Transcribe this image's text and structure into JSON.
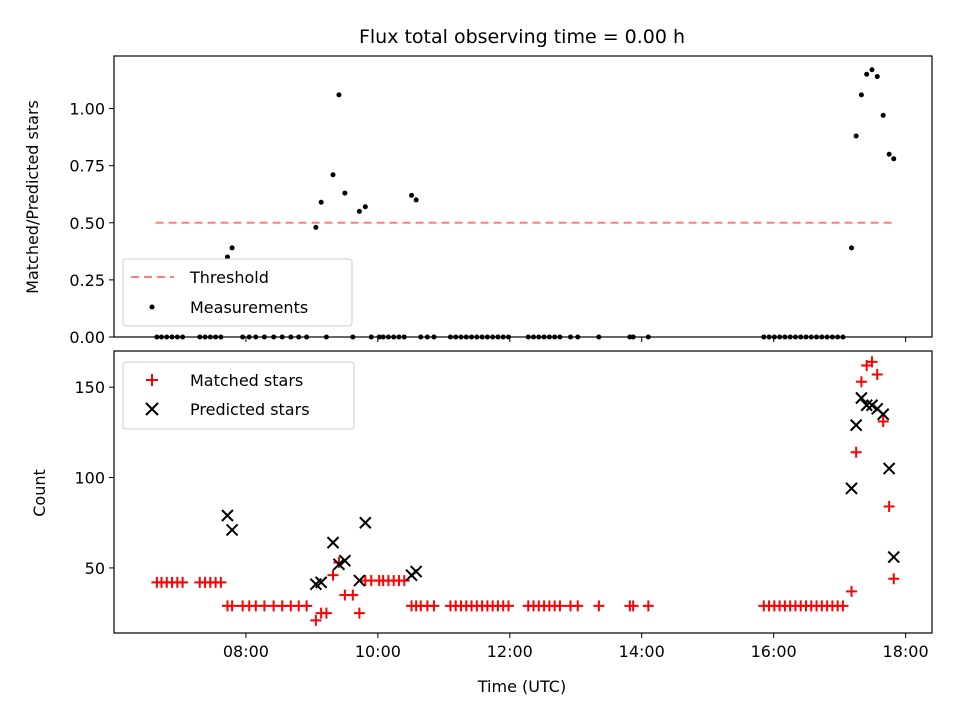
{
  "chart_data": [
    {
      "type": "scatter",
      "title": "Flux total observing time = 0.00 h",
      "xlabel": "",
      "ylabel": "Matched/Predicted stars",
      "ylim": [
        0,
        1.23
      ],
      "yticks": [
        0.0,
        0.25,
        0.5,
        0.75,
        1.0
      ],
      "ytick_labels": [
        "0.00",
        "0.25",
        "0.50",
        "0.75",
        "1.00"
      ],
      "x_hours_range": [
        6.0,
        18.4
      ],
      "legend_position": "lower-left",
      "threshold": {
        "name": "Threshold",
        "value": 0.5,
        "x_start": 6.63,
        "x_end": 17.85,
        "color": "#ff7f7f"
      },
      "measurements": {
        "name": "Measurements",
        "color": "#000000",
        "points": [
          [
            7.72,
            0.35
          ],
          [
            7.79,
            0.39
          ],
          [
            9.06,
            0.48
          ],
          [
            9.14,
            0.59
          ],
          [
            9.32,
            0.71
          ],
          [
            9.41,
            1.06
          ],
          [
            9.5,
            0.63
          ],
          [
            9.72,
            0.55
          ],
          [
            9.81,
            0.57
          ],
          [
            10.51,
            0.62
          ],
          [
            10.58,
            0.6
          ],
          [
            17.18,
            0.39
          ],
          [
            17.25,
            0.88
          ],
          [
            17.33,
            1.06
          ],
          [
            17.41,
            1.15
          ],
          [
            17.49,
            1.17
          ],
          [
            17.57,
            1.14
          ],
          [
            17.66,
            0.97
          ],
          [
            17.75,
            0.8
          ],
          [
            17.82,
            0.78
          ],
          [
            6.65,
            0.0
          ],
          [
            6.72,
            0.0
          ],
          [
            6.8,
            0.0
          ],
          [
            6.88,
            0.0
          ],
          [
            6.96,
            0.0
          ],
          [
            7.04,
            0.0
          ],
          [
            7.3,
            0.0
          ],
          [
            7.38,
            0.0
          ],
          [
            7.46,
            0.0
          ],
          [
            7.54,
            0.0
          ],
          [
            7.62,
            0.0
          ],
          [
            7.95,
            0.0
          ],
          [
            8.05,
            0.0
          ],
          [
            8.15,
            0.0
          ],
          [
            8.28,
            0.0
          ],
          [
            8.42,
            0.0
          ],
          [
            8.55,
            0.0
          ],
          [
            8.68,
            0.0
          ],
          [
            8.8,
            0.0
          ],
          [
            8.92,
            0.0
          ],
          [
            9.22,
            0.0
          ],
          [
            9.62,
            0.0
          ],
          [
            9.9,
            0.0
          ],
          [
            10.02,
            0.0
          ],
          [
            10.08,
            0.0
          ],
          [
            10.16,
            0.0
          ],
          [
            10.24,
            0.0
          ],
          [
            10.32,
            0.0
          ],
          [
            10.4,
            0.0
          ],
          [
            10.65,
            0.0
          ],
          [
            10.75,
            0.0
          ],
          [
            10.85,
            0.0
          ],
          [
            11.1,
            0.0
          ],
          [
            11.18,
            0.0
          ],
          [
            11.26,
            0.0
          ],
          [
            11.34,
            0.0
          ],
          [
            11.42,
            0.0
          ],
          [
            11.5,
            0.0
          ],
          [
            11.58,
            0.0
          ],
          [
            11.66,
            0.0
          ],
          [
            11.74,
            0.0
          ],
          [
            11.82,
            0.0
          ],
          [
            11.9,
            0.0
          ],
          [
            11.98,
            0.0
          ],
          [
            12.28,
            0.0
          ],
          [
            12.36,
            0.0
          ],
          [
            12.44,
            0.0
          ],
          [
            12.52,
            0.0
          ],
          [
            12.6,
            0.0
          ],
          [
            12.68,
            0.0
          ],
          [
            12.76,
            0.0
          ],
          [
            12.92,
            0.0
          ],
          [
            13.03,
            0.0
          ],
          [
            13.35,
            0.0
          ],
          [
            13.82,
            0.0
          ],
          [
            13.87,
            0.0
          ],
          [
            14.1,
            0.0
          ],
          [
            15.85,
            0.0
          ],
          [
            15.93,
            0.0
          ],
          [
            16.01,
            0.0
          ],
          [
            16.09,
            0.0
          ],
          [
            16.17,
            0.0
          ],
          [
            16.25,
            0.0
          ],
          [
            16.33,
            0.0
          ],
          [
            16.41,
            0.0
          ],
          [
            16.49,
            0.0
          ],
          [
            16.57,
            0.0
          ],
          [
            16.65,
            0.0
          ],
          [
            16.73,
            0.0
          ],
          [
            16.81,
            0.0
          ],
          [
            16.89,
            0.0
          ],
          [
            16.97,
            0.0
          ],
          [
            17.05,
            0.0
          ]
        ]
      }
    },
    {
      "type": "scatter",
      "title": "",
      "xlabel": "Time (UTC)",
      "ylabel": "Count",
      "ylim": [
        14,
        170
      ],
      "yticks": [
        50,
        100,
        150
      ],
      "ytick_labels": [
        "50",
        "100",
        "150"
      ],
      "xticks": [
        8,
        10,
        12,
        14,
        16,
        18
      ],
      "xtick_labels": [
        "08:00",
        "10:00",
        "12:00",
        "14:00",
        "16:00",
        "18:00"
      ],
      "x_hours_range": [
        6.0,
        18.4
      ],
      "legend_position": "top-left",
      "series": [
        {
          "name": "Matched stars",
          "marker": "plus",
          "color": "#ff0000",
          "points": [
            [
              6.65,
              42
            ],
            [
              6.72,
              42
            ],
            [
              6.8,
              42
            ],
            [
              6.88,
              42
            ],
            [
              6.96,
              42
            ],
            [
              7.04,
              42
            ],
            [
              7.3,
              42
            ],
            [
              7.38,
              42
            ],
            [
              7.46,
              42
            ],
            [
              7.54,
              42
            ],
            [
              7.62,
              42
            ],
            [
              7.72,
              29
            ],
            [
              7.79,
              29
            ],
            [
              7.95,
              29
            ],
            [
              8.05,
              29
            ],
            [
              8.15,
              29
            ],
            [
              8.28,
              29
            ],
            [
              8.42,
              29
            ],
            [
              8.55,
              29
            ],
            [
              8.68,
              29
            ],
            [
              8.8,
              29
            ],
            [
              8.92,
              29
            ],
            [
              9.06,
              21
            ],
            [
              9.14,
              25
            ],
            [
              9.22,
              25
            ],
            [
              9.32,
              46
            ],
            [
              9.41,
              53
            ],
            [
              9.5,
              35
            ],
            [
              9.62,
              35
            ],
            [
              9.72,
              25
            ],
            [
              9.81,
              43
            ],
            [
              9.9,
              43
            ],
            [
              10.02,
              43
            ],
            [
              10.08,
              43
            ],
            [
              10.16,
              43
            ],
            [
              10.24,
              43
            ],
            [
              10.32,
              43
            ],
            [
              10.4,
              43
            ],
            [
              10.51,
              29
            ],
            [
              10.58,
              29
            ],
            [
              10.65,
              29
            ],
            [
              10.75,
              29
            ],
            [
              10.85,
              29
            ],
            [
              11.1,
              29
            ],
            [
              11.18,
              29
            ],
            [
              11.26,
              29
            ],
            [
              11.34,
              29
            ],
            [
              11.42,
              29
            ],
            [
              11.5,
              29
            ],
            [
              11.58,
              29
            ],
            [
              11.66,
              29
            ],
            [
              11.74,
              29
            ],
            [
              11.82,
              29
            ],
            [
              11.9,
              29
            ],
            [
              11.98,
              29
            ],
            [
              12.28,
              29
            ],
            [
              12.36,
              29
            ],
            [
              12.44,
              29
            ],
            [
              12.52,
              29
            ],
            [
              12.6,
              29
            ],
            [
              12.68,
              29
            ],
            [
              12.76,
              29
            ],
            [
              12.92,
              29
            ],
            [
              13.03,
              29
            ],
            [
              13.35,
              29
            ],
            [
              13.82,
              29
            ],
            [
              13.87,
              29
            ],
            [
              14.1,
              29
            ],
            [
              15.85,
              29
            ],
            [
              15.93,
              29
            ],
            [
              16.01,
              29
            ],
            [
              16.09,
              29
            ],
            [
              16.17,
              29
            ],
            [
              16.25,
              29
            ],
            [
              16.33,
              29
            ],
            [
              16.41,
              29
            ],
            [
              16.49,
              29
            ],
            [
              16.57,
              29
            ],
            [
              16.65,
              29
            ],
            [
              16.73,
              29
            ],
            [
              16.81,
              29
            ],
            [
              16.89,
              29
            ],
            [
              16.97,
              29
            ],
            [
              17.05,
              29
            ],
            [
              17.18,
              37
            ],
            [
              17.25,
              114
            ],
            [
              17.33,
              153
            ],
            [
              17.41,
              162
            ],
            [
              17.49,
              164
            ],
            [
              17.57,
              157
            ],
            [
              17.66,
              131
            ],
            [
              17.75,
              84
            ],
            [
              17.82,
              44
            ]
          ]
        },
        {
          "name": "Predicted stars",
          "marker": "x",
          "color": "#000000",
          "points": [
            [
              7.72,
              79
            ],
            [
              7.79,
              71
            ],
            [
              9.06,
              41
            ],
            [
              9.14,
              42
            ],
            [
              9.32,
              64
            ],
            [
              9.41,
              52
            ],
            [
              9.5,
              54
            ],
            [
              9.72,
              43
            ],
            [
              9.81,
              75
            ],
            [
              10.51,
              46
            ],
            [
              10.58,
              48
            ],
            [
              17.18,
              94
            ],
            [
              17.25,
              129
            ],
            [
              17.33,
              144
            ],
            [
              17.41,
              140
            ],
            [
              17.49,
              140
            ],
            [
              17.57,
              138
            ],
            [
              17.66,
              135
            ],
            [
              17.75,
              105
            ],
            [
              17.82,
              56
            ]
          ]
        }
      ]
    }
  ]
}
